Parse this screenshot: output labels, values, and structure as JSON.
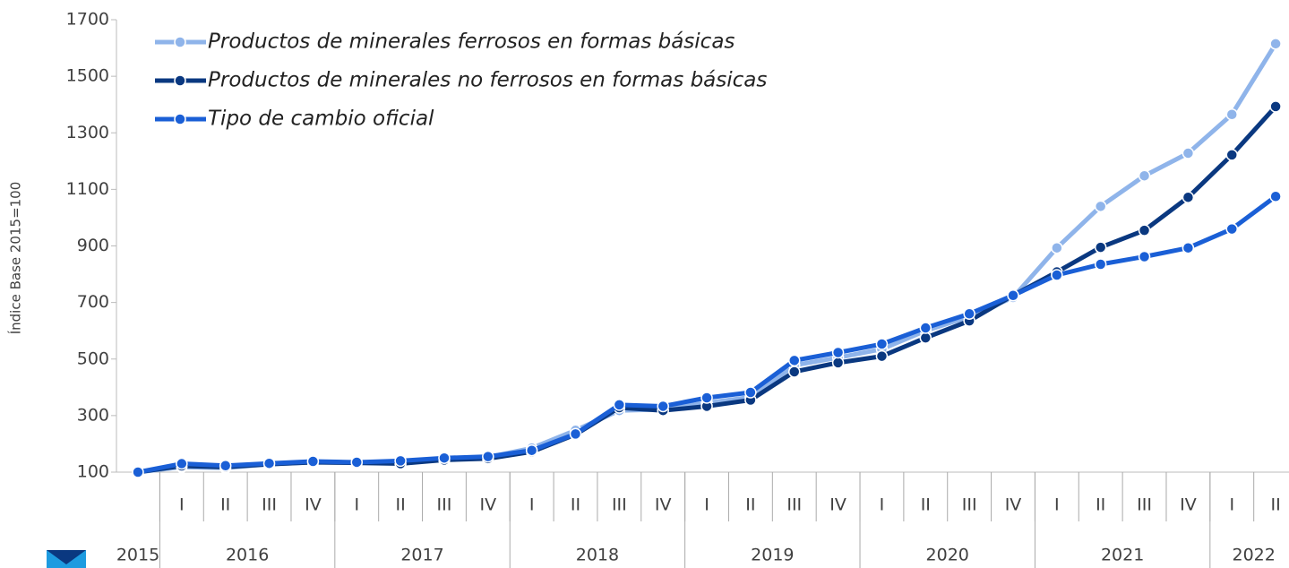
{
  "chart_data": {
    "type": "line",
    "y_label": "Índice Base 2015=100",
    "categories": [
      null,
      "I",
      "II",
      "III",
      "IV",
      "I",
      "II",
      "III",
      "IV",
      "I",
      "II",
      "III",
      "IV",
      "I",
      "II",
      "III",
      "IV",
      "I",
      "II",
      "III",
      "IV",
      "I",
      "II",
      "III",
      "IV",
      "I",
      "II"
    ],
    "category_groups": [
      {
        "label": "2015",
        "count": 1
      },
      {
        "label": "2016",
        "count": 4
      },
      {
        "label": "2017",
        "count": 4
      },
      {
        "label": "2018",
        "count": 4
      },
      {
        "label": "2019",
        "count": 4
      },
      {
        "label": "2020",
        "count": 4
      },
      {
        "label": "2021",
        "count": 4
      },
      {
        "label": "2022",
        "count": 2
      }
    ],
    "series": [
      {
        "name": "Productos de minerales ferrosos en formas básicas",
        "color": "#8fb4ea",
        "values": [
          100,
          118,
          115,
          128,
          135,
          133,
          132,
          148,
          153,
          185,
          248,
          318,
          322,
          345,
          365,
          478,
          505,
          535,
          600,
          650,
          718,
          893,
          1040,
          1148,
          1228,
          1365,
          1615
        ]
      },
      {
        "name": "Productos de minerales no ferrosos en formas básicas",
        "color": "#0a3880",
        "values": [
          100,
          122,
          118,
          128,
          135,
          133,
          130,
          143,
          148,
          172,
          233,
          328,
          318,
          333,
          355,
          455,
          487,
          510,
          575,
          635,
          725,
          808,
          895,
          955,
          1072,
          1222,
          1393
        ]
      },
      {
        "name": "Tipo de cambio oficial",
        "color": "#1a5fd6",
        "values": [
          100,
          130,
          123,
          131,
          138,
          135,
          140,
          150,
          155,
          177,
          235,
          338,
          333,
          363,
          382,
          495,
          523,
          553,
          610,
          660,
          725,
          797,
          835,
          862,
          893,
          960,
          1075
        ]
      }
    ],
    "ylim": [
      100,
      1700
    ],
    "yticks": [
      100,
      300,
      500,
      700,
      900,
      1100,
      1300,
      1500,
      1700
    ],
    "legend": "top-left"
  }
}
